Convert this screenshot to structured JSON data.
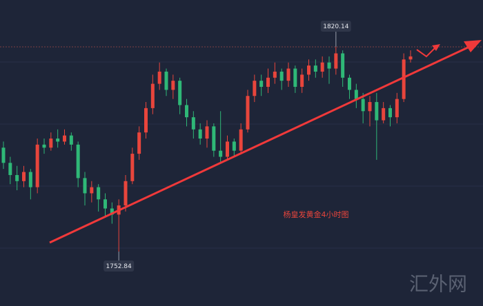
{
  "chart_data": {
    "type": "candlestick",
    "open": [
      1787,
      1782,
      1778,
      1776,
      1779,
      1774,
      1788,
      1787,
      1790,
      1789,
      1791,
      1788,
      1777,
      1772,
      1774,
      1770,
      1767,
      1765,
      1768,
      1776,
      1785,
      1792,
      1800,
      1808,
      1812,
      1806,
      1809,
      1801,
      1797,
      1793,
      1790,
      1794,
      1786,
      1784,
      1789,
      1786,
      1793,
      1804,
      1809,
      1807,
      1810,
      1812,
      1809,
      1813,
      1807,
      1811,
      1814,
      1812,
      1815,
      1813,
      1818,
      1810,
      1806,
      1803,
      1799,
      1802,
      1796,
      1800,
      1797,
      1803,
      1816
    ],
    "high": [
      1789,
      1784,
      1781,
      1781,
      1780,
      1790,
      1790,
      1792,
      1793,
      1793,
      1792,
      1789,
      1779,
      1776,
      1775,
      1772,
      1769,
      1770,
      1778,
      1787,
      1794,
      1802,
      1811,
      1815,
      1813,
      1811,
      1810,
      1803,
      1799,
      1795,
      1796,
      1795,
      1799,
      1791,
      1790,
      1795,
      1806,
      1811,
      1811,
      1813,
      1815,
      1813,
      1815,
      1814,
      1813,
      1816,
      1816,
      1817,
      1817,
      1820.14,
      1819,
      1811,
      1808,
      1805,
      1804,
      1805,
      1802,
      1801,
      1805,
      1818,
      1819
    ],
    "low": [
      1780,
      1775,
      1773,
      1774,
      1770,
      1772,
      1785,
      1786,
      1787,
      1788,
      1786,
      1774,
      1768,
      1769,
      1766,
      1764,
      1762,
      1752.84,
      1766,
      1775,
      1783,
      1790,
      1798,
      1806,
      1804,
      1803,
      1798,
      1794,
      1790,
      1788,
      1787,
      1784,
      1782,
      1783,
      1784,
      1785,
      1792,
      1802,
      1804,
      1805,
      1808,
      1806,
      1807,
      1805,
      1805,
      1809,
      1810,
      1810,
      1808,
      1811,
      1807,
      1803,
      1800,
      1795,
      1794,
      1783,
      1795,
      1794,
      1795,
      1802,
      1815
    ],
    "close": [
      1782,
      1778,
      1776,
      1779,
      1774,
      1788,
      1787,
      1790,
      1789,
      1791,
      1788,
      1777,
      1772,
      1774,
      1770,
      1767,
      1765,
      1768,
      1776,
      1785,
      1792,
      1800,
      1808,
      1812,
      1806,
      1809,
      1801,
      1797,
      1793,
      1790,
      1794,
      1786,
      1784,
      1789,
      1786,
      1793,
      1804,
      1809,
      1807,
      1810,
      1812,
      1809,
      1813,
      1807,
      1811,
      1814,
      1812,
      1815,
      1813,
      1818,
      1810,
      1806,
      1803,
      1799,
      1802,
      1796,
      1800,
      1797,
      1803,
      1816,
      1817
    ],
    "up_color": "#e8453c",
    "down_color": "#2fb877",
    "ylim": [
      1734.94,
      1835.55
    ],
    "annotations": [
      1820.14,
      1752.84
    ],
    "caption": "杨皇发黄金4小时图",
    "watermark": "汇外网"
  }
}
